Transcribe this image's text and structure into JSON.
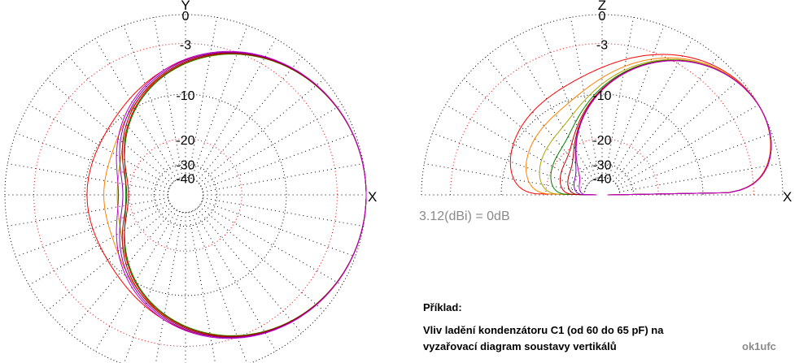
{
  "left_plot": {
    "axis_labels": {
      "top": "Y",
      "right": "X"
    },
    "ring_labels": [
      "0",
      "-3",
      "-10",
      "-20",
      "-30",
      "-40"
    ]
  },
  "right_plot": {
    "axis_labels": {
      "top": "Z",
      "right": "X"
    },
    "ring_labels": [
      "0",
      "-3",
      "-10",
      "-20",
      "-30",
      "-40"
    ],
    "reference": "3.12(dBi) = 0dB"
  },
  "caption": {
    "heading": "Příklad:",
    "lines": [
      "Vliv ladění kondenzátoru C1 (od 60 do 65 pF) na",
      "vyzařovací diagram soustavy vertikálů"
    ]
  },
  "author": "ok1ufc"
}
